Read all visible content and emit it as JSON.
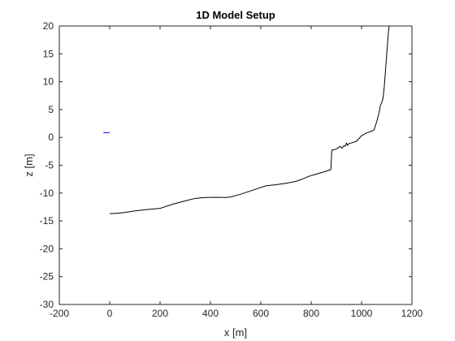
{
  "chart_data": {
    "type": "line",
    "title": "1D Model Setup",
    "xlabel": "x [m]",
    "ylabel": "z [m]",
    "xlim": [
      -200,
      1200
    ],
    "ylim": [
      -30,
      20
    ],
    "xticks": [
      -200,
      0,
      200,
      400,
      600,
      800,
      1000,
      1200
    ],
    "yticks": [
      -30,
      -25,
      -20,
      -15,
      -10,
      -5,
      0,
      5,
      10,
      15,
      20
    ],
    "grid": false,
    "legend": "none",
    "series": [
      {
        "color": "#000000",
        "x": [
          0,
          20,
          50,
          100,
          150,
          200,
          250,
          300,
          340,
          380,
          420,
          460,
          480,
          520,
          560,
          600,
          620,
          660,
          700,
          740,
          770,
          790,
          820,
          850,
          878,
          880,
          882,
          900,
          915,
          922,
          930,
          935,
          940,
          945,
          950,
          960,
          980,
          1000,
          1020,
          1040,
          1050,
          1060,
          1070,
          1075,
          1080,
          1085,
          1090,
          1095,
          1100,
          1105,
          1108,
          1110
        ],
        "y": [
          -13.7,
          -13.65,
          -13.55,
          -13.2,
          -12.95,
          -12.75,
          -12.0,
          -11.4,
          -10.95,
          -10.8,
          -10.75,
          -10.8,
          -10.7,
          -10.2,
          -9.6,
          -9.0,
          -8.7,
          -8.5,
          -8.25,
          -7.9,
          -7.4,
          -7.0,
          -6.6,
          -6.2,
          -5.8,
          -4.0,
          -2.3,
          -2.1,
          -1.6,
          -1.95,
          -1.5,
          -1.6,
          -1.0,
          -1.45,
          -1.1,
          -1.0,
          -0.7,
          0.3,
          0.8,
          1.1,
          1.4,
          2.8,
          4.5,
          5.8,
          6.2,
          7.0,
          9.0,
          12.0,
          15.0,
          18.0,
          19.5,
          20
        ]
      },
      {
        "color": "#0000ff",
        "x": [
          -25,
          0
        ],
        "y": [
          0.85,
          0.85
        ]
      }
    ]
  }
}
